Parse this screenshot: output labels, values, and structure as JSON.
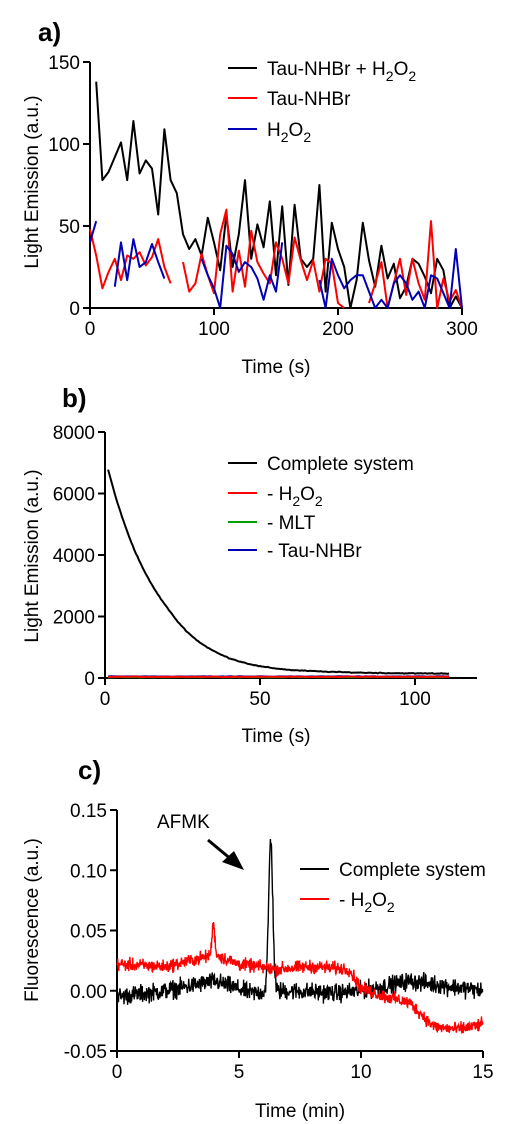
{
  "chart_data": [
    {
      "panel": "a)",
      "type": "line",
      "xlabel": "Time (s)",
      "ylabel": "Light Emission (a.u.)",
      "xlim": [
        0,
        300
      ],
      "ylim": [
        0,
        150
      ],
      "xticks": [
        "0",
        "100",
        "200",
        "300"
      ],
      "yticks": [
        "0",
        "50",
        "100",
        "150"
      ],
      "legend_position": "top-right",
      "series": [
        {
          "name": "Tau-NHBr + H2O2",
          "label_main": "Tau-NHBr + H",
          "label_sub": "2",
          "label_rest": "O",
          "label_sub2": "2",
          "color": "#000000",
          "x": [
            5,
            10,
            15,
            20,
            25,
            30,
            35,
            40,
            45,
            50,
            55,
            60,
            65,
            70,
            75,
            80,
            85,
            90,
            95,
            100,
            105,
            110,
            115,
            120,
            125,
            130,
            135,
            140,
            145,
            150,
            155,
            160,
            165,
            170,
            175,
            180,
            185,
            190,
            195,
            200,
            205,
            210,
            215,
            220,
            225,
            230,
            235,
            240,
            245,
            250,
            255,
            260,
            265,
            270,
            275,
            280,
            285,
            290,
            295,
            300
          ],
          "values": [
            138,
            78,
            83,
            92,
            101,
            78,
            114,
            82,
            90,
            85,
            57,
            109,
            78,
            70,
            45,
            36,
            42,
            32,
            55,
            40,
            23,
            57,
            25,
            45,
            78,
            30,
            51,
            37,
            65,
            20,
            62,
            14,
            63,
            30,
            25,
            30,
            75,
            10,
            52,
            36,
            25,
            0,
            17,
            52,
            29,
            13,
            38,
            18,
            27,
            6,
            13,
            30,
            27,
            19,
            9,
            30,
            23,
            0,
            7,
            0
          ],
          "gaps": []
        },
        {
          "name": "Tau-NHBr",
          "label_main": "Tau-NHBr",
          "color": "#ff0000",
          "x": [
            0,
            5,
            10,
            15,
            20,
            25,
            30,
            35,
            40,
            45,
            50,
            55,
            60,
            65,
            70,
            75,
            80,
            85,
            90,
            95,
            100,
            105,
            110,
            115,
            120,
            125,
            130,
            135,
            140,
            145,
            150,
            155,
            160,
            165,
            170,
            175,
            180,
            185,
            190,
            195,
            200,
            205,
            210,
            215,
            220,
            225,
            230,
            235,
            240,
            245,
            250,
            255,
            260,
            265,
            270,
            275,
            280,
            285,
            290,
            295,
            300
          ],
          "values": [
            48,
            32,
            12,
            22,
            30,
            17,
            32,
            30,
            34,
            26,
            31,
            42,
            25,
            15,
            5,
            28,
            10,
            15,
            33,
            20,
            9,
            45,
            60,
            10,
            35,
            13,
            47,
            28,
            21,
            15,
            40,
            30,
            15,
            43,
            29,
            17,
            29,
            10,
            30,
            27,
            3,
            0,
            17,
            0,
            33,
            3,
            15,
            28,
            0,
            15,
            30,
            8,
            30,
            15,
            5,
            53,
            0,
            18,
            4,
            11,
            0
          ],
          "gaps": [
            [
              68,
              74
            ],
            [
              205,
              212
            ],
            [
              217,
              221
            ]
          ]
        },
        {
          "name": "H2O2",
          "label_main": "H",
          "label_sub": "2",
          "label_rest": "O",
          "label_sub2": "2",
          "color": "#0000b4",
          "x": [
            0,
            5,
            10,
            15,
            20,
            25,
            30,
            35,
            40,
            45,
            50,
            55,
            60,
            65,
            70,
            75,
            80,
            85,
            90,
            95,
            100,
            105,
            110,
            115,
            120,
            125,
            130,
            135,
            140,
            145,
            150,
            155,
            160,
            165,
            170,
            175,
            180,
            185,
            190,
            195,
            200,
            205,
            210,
            215,
            220,
            225,
            230,
            235,
            240,
            245,
            250,
            255,
            260,
            265,
            270,
            275,
            280,
            285,
            290,
            295,
            300
          ],
          "values": [
            40,
            53,
            0,
            0,
            13,
            40,
            17,
            42,
            25,
            28,
            39,
            28,
            18,
            10,
            0,
            0,
            0,
            0,
            30,
            20,
            12,
            0,
            38,
            33,
            22,
            28,
            25,
            18,
            5,
            20,
            10,
            40,
            0,
            0,
            0,
            0,
            8,
            17,
            0,
            30,
            20,
            12,
            17,
            20,
            20,
            10,
            0,
            5,
            0,
            15,
            20,
            15,
            5,
            10,
            0,
            20,
            18,
            9,
            0,
            36,
            0
          ],
          "gaps": [
            [
              8,
              18
            ],
            [
              62,
              88
            ],
            [
              157,
              172
            ],
            [
              176,
              182
            ]
          ]
        }
      ]
    },
    {
      "panel": "b)",
      "type": "line",
      "xlabel": "Time (s)",
      "ylabel": "Light Emission (a.u.)",
      "xlim": [
        0,
        120
      ],
      "ylim": [
        0,
        8000
      ],
      "xticks": [
        "0",
        "50",
        "100"
      ],
      "yticks": [
        "0",
        "2000",
        "4000",
        "6000",
        "8000"
      ],
      "legend_position": "top-right",
      "series": [
        {
          "name": "Complete system",
          "label_main": "Complete system",
          "color": "#000000",
          "model": "decay",
          "x_start": 1,
          "x_end": 111,
          "values_at": {
            "1": 6780,
            "10": 4050,
            "20": 2300,
            "30": 1200,
            "40": 650,
            "50": 380,
            "60": 260,
            "70": 210,
            "80": 180,
            "90": 160,
            "100": 150,
            "111": 145
          }
        },
        {
          "name": "- H2O2",
          "label_main": "- H",
          "label_sub": "2",
          "label_rest": "O",
          "label_sub2": "2",
          "color": "#ff0000",
          "level": 40
        },
        {
          "name": "- MLT",
          "label_main": "- MLT",
          "color": "#00a000",
          "level": 30
        },
        {
          "name": "- Tau-NHBr",
          "label_main": "- Tau-NHBr",
          "color": "#0000b4",
          "level": 50
        }
      ]
    },
    {
      "panel": "c)",
      "type": "line",
      "xlabel": "Time (min)",
      "ylabel": "Fluorescence (a.u.)",
      "xlim": [
        0,
        15
      ],
      "ylim": [
        -0.05,
        0.15
      ],
      "xticks": [
        "0",
        "5",
        "10",
        "15"
      ],
      "yticks": [
        "-0.05",
        "0.00",
        "0.05",
        "0.10",
        "0.15"
      ],
      "legend_position": "top-right",
      "annotation": {
        "text": "AFMK",
        "points_to_x": 6.3,
        "points_to_y": 0.1
      },
      "series": [
        {
          "name": "Complete system",
          "label_main": "Complete system",
          "color": "#000000",
          "baseline": [
            [
              0,
              -0.005
            ],
            [
              2,
              0.0
            ],
            [
              4,
              0.008
            ],
            [
              5.5,
              -0.002
            ],
            [
              7,
              0.0
            ],
            [
              9,
              -0.002
            ],
            [
              10,
              0.0
            ],
            [
              12,
              0.008
            ],
            [
              15,
              0.0
            ]
          ],
          "noise": 0.011,
          "peak": {
            "x": 6.3,
            "height": 0.125,
            "width": 0.12
          }
        },
        {
          "name": "- H2O2",
          "label_main": "- H",
          "label_sub": "2",
          "label_rest": "O",
          "label_sub2": "2",
          "color": "#ff0000",
          "baseline": [
            [
              0,
              0.022
            ],
            [
              2,
              0.02
            ],
            [
              4,
              0.03
            ],
            [
              5,
              0.022
            ],
            [
              6.5,
              0.018
            ],
            [
              8,
              0.02
            ],
            [
              9.5,
              0.018
            ],
            [
              10,
              0.002
            ],
            [
              11,
              -0.005
            ],
            [
              12,
              -0.01
            ],
            [
              13,
              -0.03
            ],
            [
              14,
              -0.032
            ],
            [
              15,
              -0.028
            ]
          ],
          "noise": 0.008,
          "peak": {
            "x": 3.95,
            "height": 0.055,
            "width": 0.08
          }
        }
      ]
    }
  ]
}
